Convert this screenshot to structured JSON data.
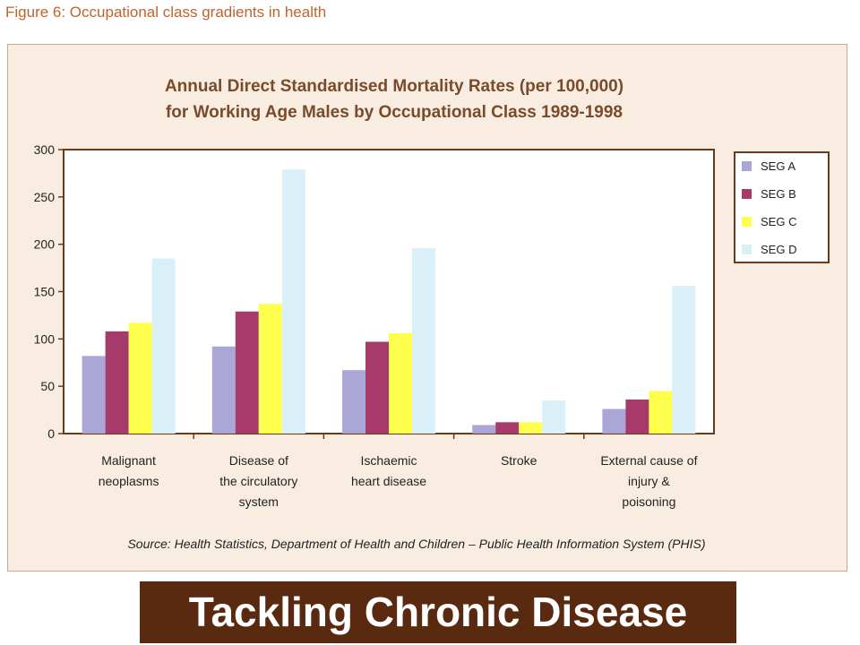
{
  "figure_label": "Figure 6: Occupational class gradients in health",
  "banner_text": "Tackling Chronic Disease",
  "source_text": "Source: Health Statistics, Department of Health and Children – Public Health Information System (PHIS)",
  "chart_data": {
    "type": "bar",
    "title_lines": [
      "Annual Direct Standardised Mortality Rates (per 100,000)",
      "for Working Age Males by Occupational Class 1989-1998"
    ],
    "categories": [
      [
        "Malignant",
        "neoplasms"
      ],
      [
        "Disease of",
        "the circulatory",
        "system"
      ],
      [
        "Ischaemic",
        "heart disease"
      ],
      [
        "Stroke"
      ],
      [
        "External cause of",
        "injury &",
        "poisoning"
      ]
    ],
    "series": [
      {
        "name": "SEG A",
        "color": "#aaa6d6",
        "values": [
          82,
          92,
          67,
          9,
          26
        ]
      },
      {
        "name": "SEG B",
        "color": "#a53a6b",
        "values": [
          108,
          129,
          97,
          12,
          36
        ]
      },
      {
        "name": "SEG C",
        "color": "#ffff4d",
        "values": [
          117,
          137,
          106,
          12,
          45
        ]
      },
      {
        "name": "SEG D",
        "color": "#daf0f8",
        "values": [
          185,
          279,
          196,
          35,
          156
        ]
      }
    ],
    "ylim": [
      0,
      300
    ],
    "yticks": [
      0,
      50,
      100,
      150,
      200,
      250,
      300
    ],
    "legend_position": "right",
    "grid": false
  }
}
